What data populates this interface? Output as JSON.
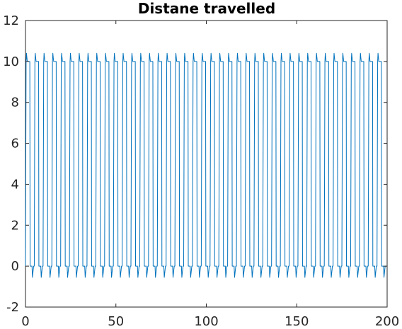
{
  "chart_data": {
    "type": "line",
    "title": "Distane travelled",
    "xlabel": "",
    "ylabel": "",
    "xlim": [
      0,
      200
    ],
    "ylim": [
      -2,
      12
    ],
    "xticks": [
      0,
      50,
      100,
      150,
      200
    ],
    "yticks": [
      -2,
      0,
      2,
      4,
      6,
      8,
      10,
      12
    ],
    "xtick_labels": [
      "0",
      "50",
      "100",
      "150",
      "200"
    ],
    "ytick_labels": [
      "-2",
      "0",
      "2",
      "4",
      "6",
      "8",
      "10",
      "12"
    ],
    "grid": false,
    "legend": "none",
    "series": [
      {
        "color": "#0072bd",
        "pattern": {
          "period": 4.86,
          "cycles": 41,
          "start_x": 0,
          "end_x": 200,
          "cycle_x_offsets": [
            0.0,
            0.35,
            0.55,
            1.0,
            1.25,
            2.4,
            2.55,
            2.75,
            3.6,
            3.85,
            4.5,
            4.86
          ],
          "cycle_y_values": [
            0.0,
            10.0,
            10.4,
            10.0,
            10.0,
            10.0,
            0.0,
            0.0,
            0.0,
            -0.55,
            0.0,
            0.0
          ]
        }
      }
    ]
  }
}
